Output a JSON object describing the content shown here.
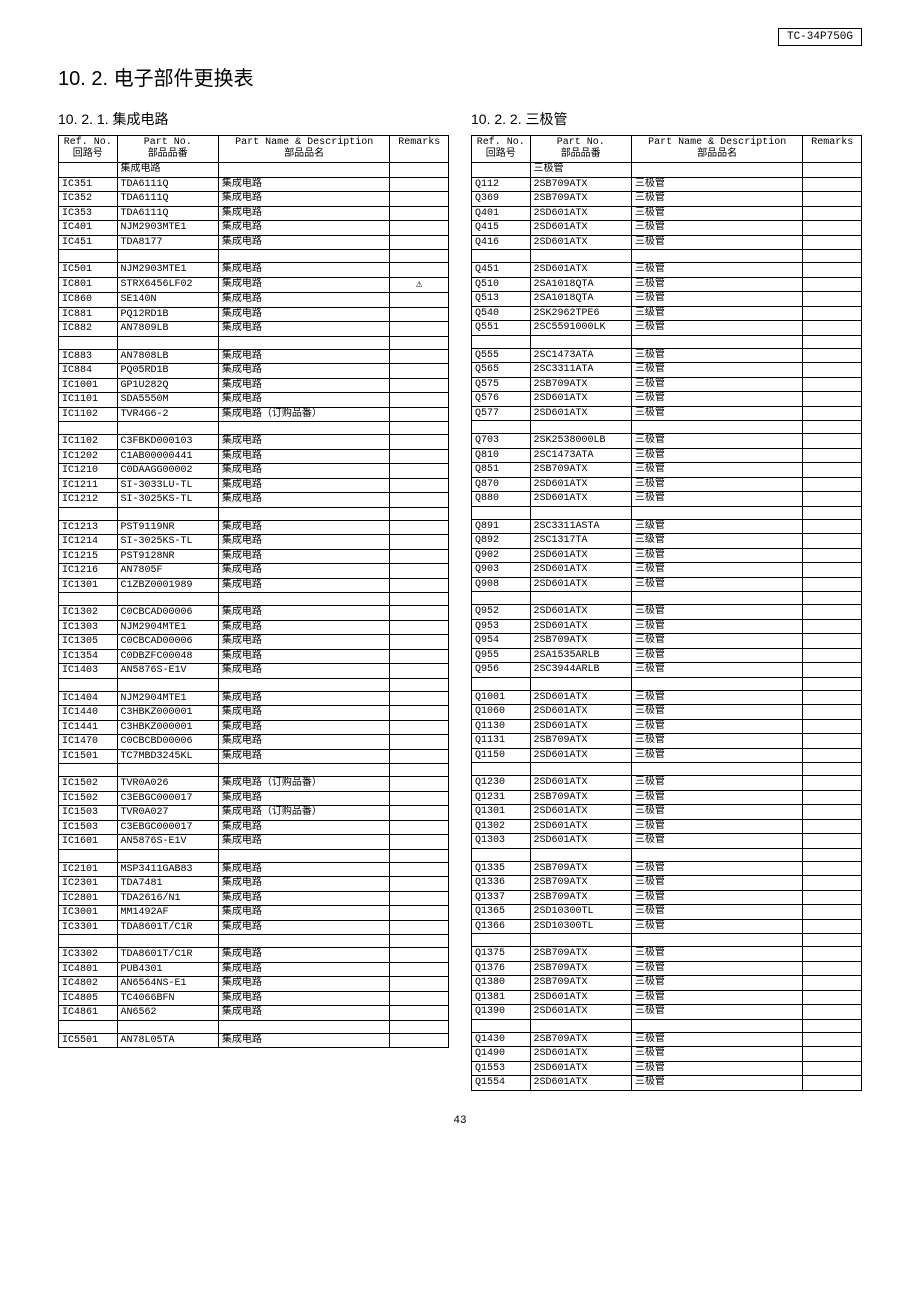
{
  "model": "TC-34P750G",
  "section_title": "10. 2.   电子部件更换表",
  "page_number": "43",
  "left": {
    "subtitle": "10. 2. 1.   集成电路",
    "headers": {
      "ref": "Ref. No.\n回路号",
      "part": "Part No.\n部品品番",
      "desc": "Part Name & Description\n部品品名",
      "rem": "Remarks"
    },
    "category_row": "集成电路",
    "rows": [
      [
        "IC351",
        "TDA6111Q",
        "集成电路",
        ""
      ],
      [
        "IC352",
        "TDA6111Q",
        "集成电路",
        ""
      ],
      [
        "IC353",
        "TDA6111Q",
        "集成电路",
        ""
      ],
      [
        "IC401",
        "NJM2903MTE1",
        "集成电路",
        ""
      ],
      [
        "IC451",
        "TDA8177",
        "集成电路",
        ""
      ],
      [
        "",
        "",
        "",
        ""
      ],
      [
        "IC501",
        "NJM2903MTE1",
        "集成电路",
        ""
      ],
      [
        "IC801",
        "STRX6456LF02",
        "集成电路",
        "⚠"
      ],
      [
        "IC860",
        "SE140N",
        "集成电路",
        ""
      ],
      [
        "IC881",
        "PQ12RD1B",
        "集成电路",
        ""
      ],
      [
        "IC882",
        "AN7809LB",
        "集成电路",
        ""
      ],
      [
        "",
        "",
        "",
        ""
      ],
      [
        "IC883",
        "AN7808LB",
        "集成电路",
        ""
      ],
      [
        "IC884",
        "PQ05RD1B",
        "集成电路",
        ""
      ],
      [
        "IC1001",
        "GP1U282Q",
        "集成电路",
        ""
      ],
      [
        "IC1101",
        "SDA5550M",
        "集成电路",
        ""
      ],
      [
        "IC1102",
        "TVR4G6-2",
        "集成电路（订购品番）",
        ""
      ],
      [
        "",
        "",
        "",
        ""
      ],
      [
        "IC1102",
        "C3FBKD000103",
        "集成电路",
        ""
      ],
      [
        "IC1202",
        "C1AB00000441",
        "集成电路",
        ""
      ],
      [
        "IC1210",
        "C0DAAGG00002",
        "集成电路",
        ""
      ],
      [
        "IC1211",
        "SI-3033LU-TL",
        "集成电路",
        ""
      ],
      [
        "IC1212",
        "SI-3025KS-TL",
        "集成电路",
        ""
      ],
      [
        "",
        "",
        "",
        ""
      ],
      [
        "IC1213",
        "PST9119NR",
        "集成电路",
        ""
      ],
      [
        "IC1214",
        "SI-3025KS-TL",
        "集成电路",
        ""
      ],
      [
        "IC1215",
        "PST9128NR",
        "集成电路",
        ""
      ],
      [
        "IC1216",
        "AN7805F",
        "集成电路",
        ""
      ],
      [
        "IC1301",
        "C1ZBZ0001989",
        "集成电路",
        ""
      ],
      [
        "",
        "",
        "",
        ""
      ],
      [
        "IC1302",
        "C0CBCAD00006",
        "集成电路",
        ""
      ],
      [
        "IC1303",
        "NJM2904MTE1",
        "集成电路",
        ""
      ],
      [
        "IC1305",
        "C0CBCAD00006",
        "集成电路",
        ""
      ],
      [
        "IC1354",
        "C0DBZFC00048",
        "集成电路",
        ""
      ],
      [
        "IC1403",
        "AN5876S-E1V",
        "集成电路",
        ""
      ],
      [
        "",
        "",
        "",
        ""
      ],
      [
        "IC1404",
        "NJM2904MTE1",
        "集成电路",
        ""
      ],
      [
        "IC1440",
        "C3HBKZ000001",
        "集成电路",
        ""
      ],
      [
        "IC1441",
        "C3HBKZ000001",
        "集成电路",
        ""
      ],
      [
        "IC1470",
        "C0CBCBD00006",
        "集成电路",
        ""
      ],
      [
        "IC1501",
        "TC7MBD3245KL",
        "集成电路",
        ""
      ],
      [
        "",
        "",
        "",
        ""
      ],
      [
        "IC1502",
        "TVR0A026",
        "集成电路（订购品番）",
        ""
      ],
      [
        "IC1502",
        "C3EBGC000017",
        "集成电路",
        ""
      ],
      [
        "IC1503",
        "TVR0A027",
        "集成电路（订购品番）",
        ""
      ],
      [
        "IC1503",
        "C3EBGC000017",
        "集成电路",
        ""
      ],
      [
        "IC1601",
        "AN5876S-E1V",
        "集成电路",
        ""
      ],
      [
        "",
        "",
        "",
        ""
      ],
      [
        "IC2101",
        "MSP3411GAB83",
        "集成电路",
        ""
      ],
      [
        "IC2301",
        "TDA7481",
        "集成电路",
        ""
      ],
      [
        "IC2801",
        "TDA2616/N1",
        "集成电路",
        ""
      ],
      [
        "IC3001",
        "MM1492AF",
        "集成电路",
        ""
      ],
      [
        "IC3301",
        "TDA8601T/C1R",
        "集成电路",
        ""
      ],
      [
        "",
        "",
        "",
        ""
      ],
      [
        "IC3302",
        "TDA8601T/C1R",
        "集成电路",
        ""
      ],
      [
        "IC4801",
        "PUB4301",
        "集成电路",
        ""
      ],
      [
        "IC4802",
        "AN6564NS-E1",
        "集成电路",
        ""
      ],
      [
        "IC4805",
        "TC4066BFN",
        "集成电路",
        ""
      ],
      [
        "IC4861",
        "AN6562",
        "集成电路",
        ""
      ],
      [
        "",
        "",
        "",
        ""
      ],
      [
        "IC5501",
        "AN78L05TA",
        "集成电路",
        ""
      ]
    ]
  },
  "right": {
    "subtitle": "10. 2. 2.   三极管",
    "headers": {
      "ref": "Ref. No.\n回路号",
      "part": "Part No.\n部品品番",
      "desc": "Part Name & Description\n部品品名",
      "rem": "Remarks"
    },
    "category_row": "三极管",
    "rows": [
      [
        "Q112",
        "2SB709ATX",
        "三极管",
        ""
      ],
      [
        "Q369",
        "2SB709ATX",
        "三极管",
        ""
      ],
      [
        "Q401",
        "2SD601ATX",
        "三极管",
        ""
      ],
      [
        "Q415",
        "2SD601ATX",
        "三极管",
        ""
      ],
      [
        "Q416",
        "2SD601ATX",
        "三极管",
        ""
      ],
      [
        "",
        "",
        "",
        ""
      ],
      [
        "Q451",
        "2SD601ATX",
        "三极管",
        ""
      ],
      [
        "Q510",
        "2SA1018QTA",
        "三极管",
        ""
      ],
      [
        "Q513",
        "2SA1018QTA",
        "三极管",
        ""
      ],
      [
        "Q540",
        "2SK2962TPE6",
        "三级管",
        ""
      ],
      [
        "Q551",
        "2SC5591000LK",
        "三极管",
        ""
      ],
      [
        "",
        "",
        "",
        ""
      ],
      [
        "Q555",
        "2SC1473ATA",
        "三极管",
        ""
      ],
      [
        "Q565",
        "2SC3311ATA",
        "三极管",
        ""
      ],
      [
        "Q575",
        "2SB709ATX",
        "三极管",
        ""
      ],
      [
        "Q576",
        "2SD601ATX",
        "三极管",
        ""
      ],
      [
        "Q577",
        "2SD601ATX",
        "三极管",
        ""
      ],
      [
        "",
        "",
        "",
        ""
      ],
      [
        "Q703",
        "2SK2538000LB",
        "三极管",
        ""
      ],
      [
        "Q810",
        "2SC1473ATA",
        "三极管",
        ""
      ],
      [
        "Q851",
        "2SB709ATX",
        "三极管",
        ""
      ],
      [
        "Q870",
        "2SD601ATX",
        "三极管",
        ""
      ],
      [
        "Q880",
        "2SD601ATX",
        "三极管",
        ""
      ],
      [
        "",
        "",
        "",
        ""
      ],
      [
        "Q891",
        "2SC3311ASTA",
        "三级管",
        ""
      ],
      [
        "Q892",
        "2SC1317TA",
        "三级管",
        ""
      ],
      [
        "Q902",
        "2SD601ATX",
        "三极管",
        ""
      ],
      [
        "Q903",
        "2SD601ATX",
        "三极管",
        ""
      ],
      [
        "Q908",
        "2SD601ATX",
        "三极管",
        ""
      ],
      [
        "",
        "",
        "",
        ""
      ],
      [
        "Q952",
        "2SD601ATX",
        "三极管",
        ""
      ],
      [
        "Q953",
        "2SD601ATX",
        "三极管",
        ""
      ],
      [
        "Q954",
        "2SB709ATX",
        "三极管",
        ""
      ],
      [
        "Q955",
        "2SA1535ARLB",
        "三极管",
        ""
      ],
      [
        "Q956",
        "2SC3944ARLB",
        "三极管",
        ""
      ],
      [
        "",
        "",
        "",
        ""
      ],
      [
        "Q1001",
        "2SD601ATX",
        "三极管",
        ""
      ],
      [
        "Q1060",
        "2SD601ATX",
        "三极管",
        ""
      ],
      [
        "Q1130",
        "2SD601ATX",
        "三极管",
        ""
      ],
      [
        "Q1131",
        "2SB709ATX",
        "三极管",
        ""
      ],
      [
        "Q1150",
        "2SD601ATX",
        "三极管",
        ""
      ],
      [
        "",
        "",
        "",
        ""
      ],
      [
        "Q1230",
        "2SD601ATX",
        "三极管",
        ""
      ],
      [
        "Q1231",
        "2SB709ATX",
        "三极管",
        ""
      ],
      [
        "Q1301",
        "2SD601ATX",
        "三极管",
        ""
      ],
      [
        "Q1302",
        "2SD601ATX",
        "三极管",
        ""
      ],
      [
        "Q1303",
        "2SD601ATX",
        "三极管",
        ""
      ],
      [
        "",
        "",
        "",
        ""
      ],
      [
        "Q1335",
        "2SB709ATX",
        "三极管",
        ""
      ],
      [
        "Q1336",
        "2SB709ATX",
        "三极管",
        ""
      ],
      [
        "Q1337",
        "2SB709ATX",
        "三极管",
        ""
      ],
      [
        "Q1365",
        "2SD10300TL",
        "三极管",
        ""
      ],
      [
        "Q1366",
        "2SD10300TL",
        "三极管",
        ""
      ],
      [
        "",
        "",
        "",
        ""
      ],
      [
        "Q1375",
        "2SB709ATX",
        "三极管",
        ""
      ],
      [
        "Q1376",
        "2SB709ATX",
        "三极管",
        ""
      ],
      [
        "Q1380",
        "2SB709ATX",
        "三极管",
        ""
      ],
      [
        "Q1381",
        "2SD601ATX",
        "三极管",
        ""
      ],
      [
        "Q1390",
        "2SD601ATX",
        "三极管",
        ""
      ],
      [
        "",
        "",
        "",
        ""
      ],
      [
        "Q1430",
        "2SB709ATX",
        "三极管",
        ""
      ],
      [
        "Q1490",
        "2SD601ATX",
        "三极管",
        ""
      ],
      [
        "Q1553",
        "2SD601ATX",
        "三极管",
        ""
      ],
      [
        "Q1554",
        "2SD601ATX",
        "三极管",
        ""
      ]
    ]
  }
}
